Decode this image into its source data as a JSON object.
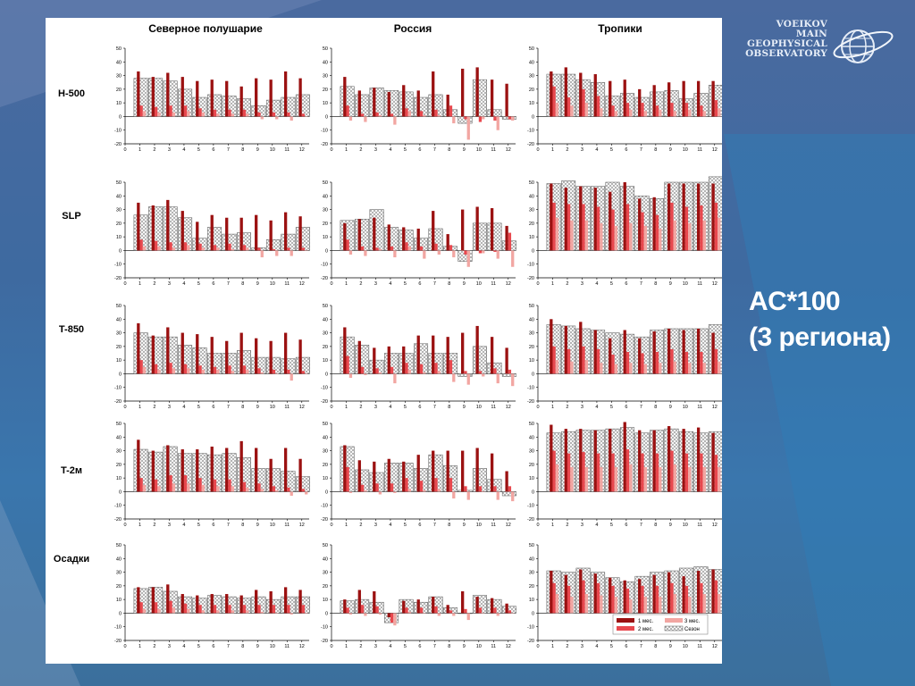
{
  "logo": {
    "lines": [
      "VOEIKOV",
      "MAIN",
      "GEOPHYSICAL",
      "OBSERVATORY"
    ],
    "icon": "globe-ring-icon"
  },
  "caption": {
    "line1": "AC*100",
    "line2": "(3 региона)"
  },
  "colors": {
    "background": "#3e6aa0",
    "m1": "#9b1111",
    "m2": "#e8484e",
    "m3": "#f2a6a2",
    "season_fill": "#ffffff",
    "season_hatch": "#8a8a8a"
  },
  "legend": {
    "m1": "1 мес.",
    "m2": "2 мес.",
    "m3": "3 мес.",
    "season": "Сезон"
  },
  "chart_data": {
    "type": "bar",
    "columns": [
      "Северное полушарие",
      "Россия",
      "Тропики"
    ],
    "rows": [
      "H-500",
      "SLP",
      "T-850",
      "T-2м",
      "Осадки"
    ],
    "categories": [
      1,
      2,
      3,
      4,
      5,
      6,
      7,
      8,
      9,
      10,
      11,
      12
    ],
    "x_ticks": [
      "0",
      "1",
      "2",
      "3",
      "4",
      "5",
      "6",
      "7",
      "8",
      "9",
      "10",
      "11",
      "12"
    ],
    "y_ticks": [
      "50",
      "40",
      "30",
      "20",
      "10",
      "0",
      "-10",
      "-20"
    ],
    "ylim": [
      -20,
      50
    ],
    "series_order": [
      "m1",
      "m2",
      "m3",
      "season"
    ],
    "panels": [
      {
        "row": "H-500",
        "col": "Северное полушарие",
        "m1": [
          33,
          29,
          32,
          29,
          26,
          27,
          26,
          22,
          28,
          27,
          33,
          28
        ],
        "m2": [
          8,
          7,
          8,
          8,
          6,
          5,
          5,
          5,
          3,
          3,
          3,
          2
        ],
        "m3": [
          4,
          3,
          3,
          4,
          3,
          2,
          2,
          2,
          -2,
          -2,
          -3,
          0
        ],
        "season": [
          28,
          28,
          26,
          20,
          14,
          16,
          15,
          13,
          8,
          12,
          14,
          16
        ]
      },
      {
        "row": "H-500",
        "col": "Россия",
        "m1": [
          29,
          19,
          21,
          18,
          23,
          19,
          33,
          16,
          35,
          36,
          27,
          24
        ],
        "m2": [
          8,
          2,
          3,
          2,
          6,
          4,
          5,
          8,
          -2,
          -4,
          -3,
          -2
        ],
        "m3": [
          -3,
          -4,
          1,
          -6,
          4,
          1,
          1,
          -5,
          -17,
          -2,
          -10,
          -3
        ],
        "season": [
          22,
          16,
          21,
          19,
          18,
          14,
          16,
          5,
          -5,
          27,
          5,
          -2
        ]
      },
      {
        "row": "H-500",
        "col": "Тропики",
        "m1": [
          33,
          36,
          32,
          31,
          26,
          27,
          20,
          23,
          25,
          26,
          26,
          26
        ],
        "m2": [
          22,
          14,
          20,
          15,
          8,
          10,
          10,
          8,
          10,
          10,
          8,
          12
        ],
        "m3": [
          10,
          8,
          10,
          6,
          4,
          5,
          4,
          5,
          4,
          5,
          4,
          6
        ],
        "season": [
          31,
          31,
          27,
          25,
          15,
          17,
          14,
          18,
          19,
          13,
          17,
          23
        ]
      },
      {
        "row": "SLP",
        "col": "Северное полушарие",
        "m1": [
          35,
          33,
          37,
          29,
          21,
          26,
          24,
          24,
          26,
          22,
          28,
          25
        ],
        "m2": [
          8,
          7,
          6,
          6,
          5,
          4,
          5,
          4,
          2,
          1,
          2,
          2
        ],
        "m3": [
          3,
          3,
          2,
          4,
          2,
          2,
          1,
          2,
          -5,
          -4,
          -4,
          0
        ],
        "season": [
          26,
          32,
          32,
          24,
          9,
          17,
          12,
          13,
          2,
          8,
          12,
          17
        ]
      },
      {
        "row": "SLP",
        "col": "Россия",
        "m1": [
          20,
          23,
          24,
          19,
          17,
          16,
          29,
          12,
          30,
          32,
          31,
          18
        ],
        "m2": [
          8,
          3,
          2,
          3,
          6,
          3,
          5,
          4,
          -3,
          -2,
          -1,
          13
        ],
        "m3": [
          -3,
          -4,
          1,
          -5,
          3,
          -6,
          -3,
          -5,
          -12,
          -2,
          -6,
          -12
        ],
        "season": [
          22,
          23,
          30,
          17,
          15,
          9,
          16,
          3,
          -8,
          20,
          20,
          7
        ]
      },
      {
        "row": "SLP",
        "col": "Тропики",
        "m1": [
          49,
          46,
          47,
          46,
          43,
          50,
          38,
          39,
          49,
          49,
          49,
          49
        ],
        "m2": [
          35,
          34,
          34,
          32,
          30,
          34,
          28,
          26,
          35,
          32,
          33,
          35
        ],
        "m3": [
          24,
          22,
          22,
          20,
          18,
          20,
          18,
          16,
          22,
          20,
          22,
          24
        ],
        "season": [
          49,
          51,
          47,
          47,
          50,
          47,
          40,
          38,
          50,
          50,
          50,
          54
        ]
      },
      {
        "row": "T-850",
        "col": "Северное полушарие",
        "m1": [
          37,
          28,
          34,
          30,
          29,
          27,
          24,
          30,
          26,
          24,
          30,
          25
        ],
        "m2": [
          10,
          7,
          8,
          7,
          6,
          5,
          6,
          6,
          4,
          3,
          3,
          2
        ],
        "m3": [
          5,
          3,
          4,
          4,
          3,
          3,
          2,
          3,
          1,
          0,
          -5,
          0
        ],
        "season": [
          30,
          27,
          27,
          21,
          19,
          15,
          15,
          17,
          12,
          12,
          11,
          12
        ]
      },
      {
        "row": "T-850",
        "col": "Россия",
        "m1": [
          34,
          24,
          19,
          20,
          20,
          28,
          28,
          27,
          30,
          35,
          27,
          19
        ],
        "m2": [
          13,
          5,
          4,
          5,
          8,
          7,
          8,
          10,
          2,
          2,
          4,
          3
        ],
        "m3": [
          -3,
          -1,
          1,
          -7,
          3,
          1,
          2,
          -6,
          -8,
          -2,
          -7,
          -9
        ],
        "season": [
          27,
          21,
          10,
          15,
          15,
          22,
          15,
          15,
          -2,
          20,
          8,
          -2
        ]
      },
      {
        "row": "T-850",
        "col": "Тропики",
        "m1": [
          40,
          35,
          38,
          32,
          26,
          32,
          26,
          31,
          33,
          32,
          33,
          30
        ],
        "m2": [
          20,
          18,
          20,
          18,
          14,
          16,
          15,
          16,
          18,
          16,
          16,
          18
        ],
        "m3": [
          10,
          9,
          10,
          8,
          7,
          8,
          7,
          8,
          9,
          8,
          8,
          9
        ],
        "season": [
          36,
          35,
          33,
          32,
          30,
          29,
          27,
          32,
          33,
          33,
          33,
          36
        ]
      },
      {
        "row": "T-2м",
        "col": "Северное полушарие",
        "m1": [
          38,
          30,
          34,
          31,
          31,
          33,
          32,
          37,
          32,
          24,
          32,
          24
        ],
        "m2": [
          10,
          9,
          12,
          12,
          10,
          9,
          9,
          7,
          6,
          4,
          3,
          2
        ],
        "m3": [
          5,
          4,
          6,
          6,
          5,
          4,
          4,
          3,
          2,
          1,
          -3,
          -2
        ],
        "season": [
          31,
          29,
          33,
          28,
          28,
          27,
          28,
          25,
          17,
          17,
          15,
          11
        ]
      },
      {
        "row": "T-2м",
        "col": "Россия",
        "m1": [
          34,
          23,
          22,
          24,
          22,
          27,
          30,
          30,
          30,
          32,
          28,
          15
        ],
        "m2": [
          18,
          5,
          6,
          6,
          10,
          8,
          10,
          10,
          4,
          4,
          4,
          4
        ],
        "m3": [
          -1,
          1,
          -2,
          -1,
          2,
          1,
          2,
          -5,
          -6,
          0,
          -6,
          -7
        ],
        "season": [
          33,
          16,
          14,
          21,
          21,
          17,
          27,
          19,
          1,
          17,
          9,
          -3
        ]
      },
      {
        "row": "T-2м",
        "col": "Тропики",
        "m1": [
          49,
          46,
          46,
          45,
          46,
          51,
          45,
          45,
          48,
          46,
          47,
          43
        ],
        "m2": [
          30,
          28,
          29,
          28,
          28,
          31,
          28,
          28,
          30,
          28,
          28,
          27
        ],
        "m3": [
          20,
          18,
          18,
          18,
          18,
          20,
          18,
          18,
          20,
          18,
          18,
          18
        ],
        "season": [
          43,
          44,
          45,
          45,
          46,
          47,
          43,
          45,
          46,
          44,
          43,
          44
        ]
      },
      {
        "row": "Осадки",
        "col": "Северное полушарие",
        "m1": [
          19,
          19,
          21,
          14,
          13,
          14,
          14,
          13,
          17,
          16,
          19,
          17
        ],
        "m2": [
          8,
          8,
          9,
          7,
          6,
          6,
          6,
          6,
          6,
          6,
          6,
          6
        ],
        "m3": [
          3,
          3,
          4,
          3,
          2,
          2,
          2,
          2,
          1,
          0,
          -1,
          0
        ],
        "season": [
          18,
          19,
          16,
          12,
          11,
          13,
          12,
          11,
          12,
          10,
          12,
          12
        ]
      },
      {
        "row": "Осадки",
        "col": "Россия",
        "m1": [
          10,
          17,
          16,
          -3,
          9,
          10,
          12,
          6,
          16,
          12,
          11,
          7
        ],
        "m2": [
          4,
          6,
          5,
          -7,
          4,
          4,
          5,
          2,
          3,
          4,
          4,
          2
        ],
        "m3": [
          -1,
          -2,
          -1,
          -9,
          1,
          0,
          -2,
          -2,
          -5,
          0,
          -2,
          0
        ],
        "season": [
          9,
          10,
          8,
          -7,
          10,
          8,
          12,
          4,
          0,
          13,
          10,
          5
        ]
      },
      {
        "row": "Осадки",
        "col": "Тропики",
        "m1": [
          31,
          28,
          32,
          29,
          26,
          24,
          25,
          28,
          30,
          27,
          31,
          32
        ],
        "m2": [
          22,
          20,
          24,
          22,
          20,
          18,
          20,
          20,
          22,
          20,
          22,
          24
        ],
        "m3": [
          14,
          12,
          14,
          13,
          12,
          10,
          12,
          12,
          14,
          12,
          14,
          14
        ],
        "season": [
          31,
          30,
          33,
          30,
          26,
          23,
          27,
          30,
          31,
          33,
          34,
          32
        ]
      }
    ]
  }
}
